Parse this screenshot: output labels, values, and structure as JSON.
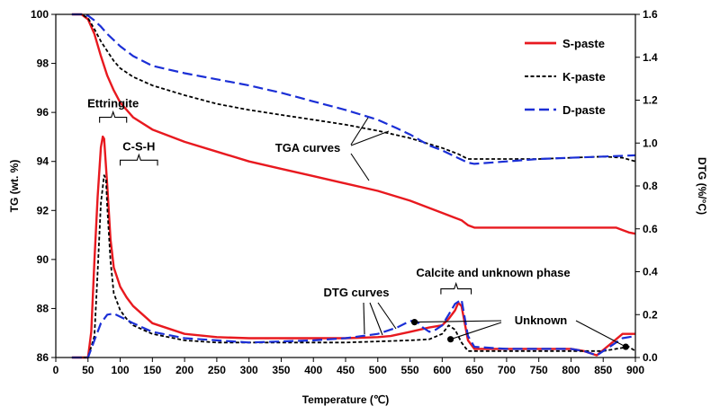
{
  "chart_data": {
    "type": "line",
    "title": "",
    "xlabel": "Temperature (℃)",
    "ylabel_left": "TG (wt. %)",
    "ylabel_right": "DTG (%/°C)",
    "xlim": [
      0,
      900
    ],
    "ylim_left": [
      86,
      100
    ],
    "ylim_right": [
      0,
      1.6
    ],
    "x_ticks": [
      "0",
      "50",
      "100",
      "150",
      "200",
      "250",
      "300",
      "350",
      "400",
      "450",
      "500",
      "550",
      "600",
      "650",
      "700",
      "750",
      "800",
      "850",
      "900"
    ],
    "y_left_ticks": [
      "86",
      "88",
      "90",
      "92",
      "94",
      "96",
      "98",
      "100"
    ],
    "y_right_ticks": [
      "0.0",
      "0.2",
      "0.4",
      "0.6",
      "0.8",
      "1.0",
      "1.2",
      "1.4",
      "1.6"
    ],
    "legend": {
      "position": "top-right",
      "entries": [
        "S-paste",
        "K-paste",
        "D-paste"
      ]
    },
    "series": [
      {
        "name": "S-paste",
        "kind": "TG",
        "axis": "left",
        "color": "#e8191f",
        "dash": "solid",
        "x": [
          25,
          40,
          50,
          60,
          70,
          80,
          90,
          100,
          120,
          150,
          200,
          250,
          300,
          350,
          400,
          450,
          500,
          550,
          600,
          620,
          630,
          640,
          650,
          700,
          750,
          800,
          850,
          870,
          880,
          890,
          900
        ],
        "y": [
          100,
          100,
          99.8,
          99.2,
          98.3,
          97.5,
          96.9,
          96.4,
          95.8,
          95.3,
          94.8,
          94.4,
          94.0,
          93.7,
          93.4,
          93.1,
          92.8,
          92.4,
          91.9,
          91.7,
          91.6,
          91.4,
          91.3,
          91.3,
          91.3,
          91.3,
          91.3,
          91.3,
          91.2,
          91.1,
          91.05
        ]
      },
      {
        "name": "K-paste",
        "kind": "TG",
        "axis": "left",
        "color": "#000000",
        "dash": "dash",
        "x": [
          25,
          40,
          50,
          60,
          70,
          80,
          90,
          100,
          120,
          150,
          200,
          250,
          300,
          350,
          400,
          450,
          500,
          550,
          600,
          625,
          640,
          650,
          700,
          750,
          800,
          850,
          880,
          900
        ],
        "y": [
          100,
          100,
          99.85,
          99.4,
          98.9,
          98.5,
          98.1,
          97.8,
          97.45,
          97.1,
          96.7,
          96.35,
          96.1,
          95.9,
          95.7,
          95.5,
          95.25,
          94.95,
          94.55,
          94.3,
          94.1,
          94.1,
          94.1,
          94.1,
          94.15,
          94.2,
          94.15,
          94.0
        ]
      },
      {
        "name": "D-paste",
        "kind": "TG",
        "axis": "left",
        "color": "#1b2fd6",
        "dash": "longdash",
        "x": [
          25,
          40,
          50,
          60,
          70,
          80,
          100,
          120,
          150,
          200,
          250,
          300,
          350,
          400,
          450,
          500,
          530,
          550,
          580,
          600,
          620,
          640,
          650,
          700,
          750,
          800,
          850,
          900
        ],
        "y": [
          100,
          100,
          99.95,
          99.75,
          99.5,
          99.2,
          98.7,
          98.3,
          97.9,
          97.6,
          97.35,
          97.1,
          96.8,
          96.45,
          96.1,
          95.7,
          95.35,
          95.1,
          94.65,
          94.45,
          94.2,
          93.95,
          93.9,
          94.0,
          94.1,
          94.15,
          94.2,
          94.25
        ]
      },
      {
        "name": "S-paste DTG",
        "kind": "DTG",
        "axis": "right",
        "color": "#e8191f",
        "dash": "solid",
        "x": [
          25,
          50,
          55,
          60,
          65,
          70,
          73,
          75,
          80,
          85,
          90,
          100,
          110,
          120,
          150,
          200,
          250,
          300,
          350,
          400,
          450,
          500,
          520,
          550,
          580,
          600,
          610,
          620,
          625,
          630,
          640,
          650,
          700,
          750,
          800,
          820,
          840,
          860,
          880,
          900
        ],
        "y": [
          0,
          0,
          0.12,
          0.45,
          0.75,
          0.98,
          1.03,
          1.02,
          0.8,
          0.55,
          0.42,
          0.33,
          0.28,
          0.24,
          0.16,
          0.11,
          0.095,
          0.09,
          0.09,
          0.09,
          0.09,
          0.095,
          0.1,
          0.12,
          0.14,
          0.15,
          0.18,
          0.22,
          0.255,
          0.24,
          0.08,
          0.04,
          0.04,
          0.04,
          0.04,
          0.03,
          0.01,
          0.06,
          0.11,
          0.11
        ]
      },
      {
        "name": "K-paste DTG",
        "kind": "DTG",
        "axis": "right",
        "color": "#000000",
        "dash": "dash",
        "x": [
          25,
          50,
          60,
          65,
          70,
          75,
          78,
          80,
          85,
          90,
          100,
          110,
          120,
          150,
          200,
          250,
          300,
          350,
          400,
          450,
          500,
          550,
          580,
          600,
          610,
          620,
          630,
          640,
          650,
          700,
          750,
          800,
          850,
          870,
          890,
          900
        ],
        "y": [
          0,
          0,
          0.1,
          0.4,
          0.72,
          0.85,
          0.83,
          0.7,
          0.45,
          0.3,
          0.22,
          0.18,
          0.15,
          0.11,
          0.08,
          0.07,
          0.07,
          0.07,
          0.07,
          0.07,
          0.075,
          0.08,
          0.085,
          0.11,
          0.15,
          0.13,
          0.07,
          0.03,
          0.03,
          0.03,
          0.03,
          0.03,
          0.03,
          0.04,
          0.05,
          0.03
        ]
      },
      {
        "name": "D-paste DTG",
        "kind": "DTG",
        "axis": "right",
        "color": "#1b2fd6",
        "dash": "longdash",
        "x": [
          25,
          50,
          60,
          70,
          80,
          90,
          100,
          120,
          150,
          200,
          250,
          300,
          350,
          400,
          450,
          500,
          530,
          550,
          560,
          570,
          580,
          590,
          600,
          610,
          620,
          630,
          640,
          650,
          700,
          750,
          800,
          820,
          840,
          860,
          880,
          900
        ],
        "y": [
          0,
          0,
          0.08,
          0.16,
          0.2,
          0.205,
          0.19,
          0.16,
          0.12,
          0.09,
          0.08,
          0.07,
          0.075,
          0.08,
          0.09,
          0.11,
          0.14,
          0.17,
          0.17,
          0.14,
          0.12,
          0.13,
          0.15,
          0.2,
          0.25,
          0.27,
          0.1,
          0.05,
          0.04,
          0.04,
          0.04,
          0.03,
          0.01,
          0.05,
          0.09,
          0.1
        ]
      }
    ],
    "annotations": [
      {
        "text": "Ettringite",
        "bracket_x": [
          68,
          110
        ],
        "axis": "right",
        "bracket_y": 1.12
      },
      {
        "text": "C-S-H",
        "bracket_x": [
          100,
          158
        ],
        "axis": "right",
        "bracket_y": 0.92
      },
      {
        "text": "TGA curves",
        "target": "tg_lines"
      },
      {
        "text": "DTG curves",
        "target": "dtg_lines"
      },
      {
        "text": "Calcite and unknown phase",
        "bracket_x": [
          598,
          645
        ],
        "axis": "right",
        "bracket_y": 0.32
      },
      {
        "text": "Unknown",
        "target": "unknown_points"
      }
    ],
    "unknown_points": [
      {
        "x": 557,
        "y": 0.165
      },
      {
        "x": 613,
        "y": 0.085
      },
      {
        "x": 885,
        "y": 0.05
      }
    ]
  }
}
